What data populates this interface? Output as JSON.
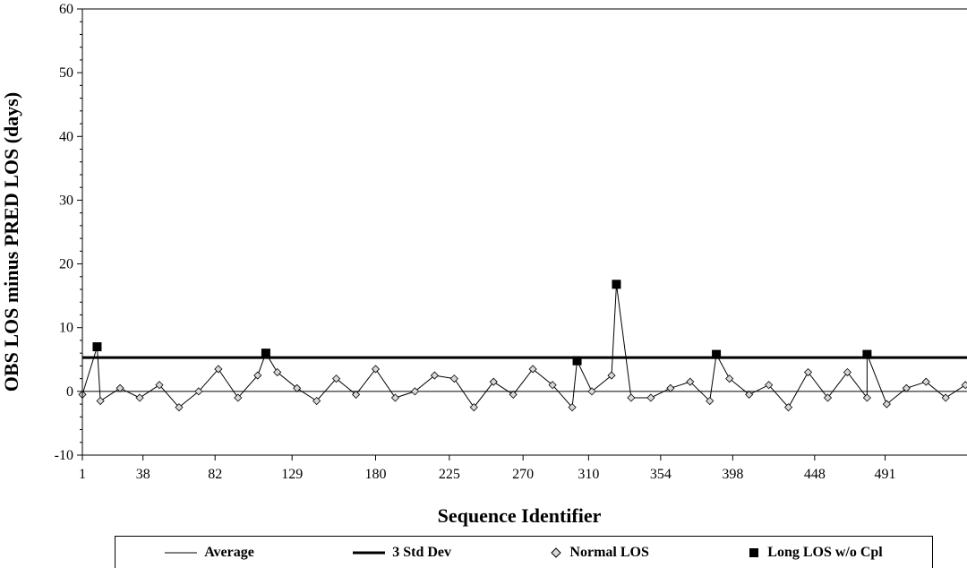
{
  "chart_data": {
    "type": "line",
    "title": "",
    "xlabel": "Sequence Identifier",
    "ylabel": "OBS LOS  minus PRED LOS (days)",
    "ylim": [
      -10,
      60
    ],
    "xlim": [
      1,
      541
    ],
    "y_ticks": [
      "-10",
      "0",
      "10",
      "20",
      "30",
      "40",
      "50",
      "60"
    ],
    "x_ticks": [
      {
        "value": 1,
        "label": "1"
      },
      {
        "value": 38,
        "label": "38"
      },
      {
        "value": 82,
        "label": "82"
      },
      {
        "value": 129,
        "label": "129"
      },
      {
        "value": 180,
        "label": "180"
      },
      {
        "value": 225,
        "label": "225"
      },
      {
        "value": 270,
        "label": "270"
      },
      {
        "value": 310,
        "label": "310"
      },
      {
        "value": 354,
        "label": "354"
      },
      {
        "value": 398,
        "label": "398"
      },
      {
        "value": 448,
        "label": "448"
      },
      {
        "value": 491,
        "label": "491"
      }
    ],
    "grid": false,
    "legend_position": "bottom",
    "series": [
      {
        "name": "Average",
        "kind": "hline",
        "value": 0,
        "color": "#000000"
      },
      {
        "name": "3 Std Dev",
        "kind": "hline",
        "value": 5.3,
        "color": "#000000"
      },
      {
        "name": "Normal LOS",
        "kind": "scatter-line",
        "color": "#bfbfbf",
        "x": [
          1,
          12,
          24,
          36,
          48,
          60,
          72,
          84,
          96,
          108,
          120,
          132,
          144,
          156,
          168,
          180,
          192,
          204,
          216,
          228,
          240,
          252,
          264,
          276,
          288,
          300,
          312,
          324,
          336,
          348,
          360,
          372,
          384,
          396,
          408,
          420,
          432,
          444,
          456,
          468,
          480,
          492,
          504,
          516,
          528,
          540
        ],
        "y": [
          -0.5,
          -1.5,
          0.5,
          -1.0,
          1.0,
          -2.5,
          0.0,
          3.5,
          -1.0,
          2.5,
          3.0,
          0.5,
          -1.5,
          2.0,
          -0.5,
          3.5,
          -1.0,
          0.0,
          2.5,
          2.0,
          -2.5,
          1.5,
          -0.5,
          3.5,
          1.0,
          -2.5,
          0.0,
          2.5,
          -1.0,
          -1.0,
          0.5,
          1.5,
          -1.5,
          2.0,
          -0.5,
          1.0,
          -2.5,
          3.0,
          -1.0,
          3.0,
          -1.0,
          -2.0,
          0.5,
          1.5,
          -1.0,
          1.0
        ]
      },
      {
        "name": "Long LOS w/o Cpl",
        "kind": "scatter",
        "color": "#000000",
        "x": [
          10,
          113,
          303,
          327,
          388,
          480
        ],
        "y": [
          7.0,
          6.0,
          4.8,
          16.8,
          5.8,
          5.8
        ]
      }
    ]
  },
  "legend": {
    "items": [
      {
        "label": "Average"
      },
      {
        "label": "3 Std Dev"
      },
      {
        "label": "Normal LOS"
      },
      {
        "label": "Long LOS w/o Cpl"
      }
    ]
  }
}
